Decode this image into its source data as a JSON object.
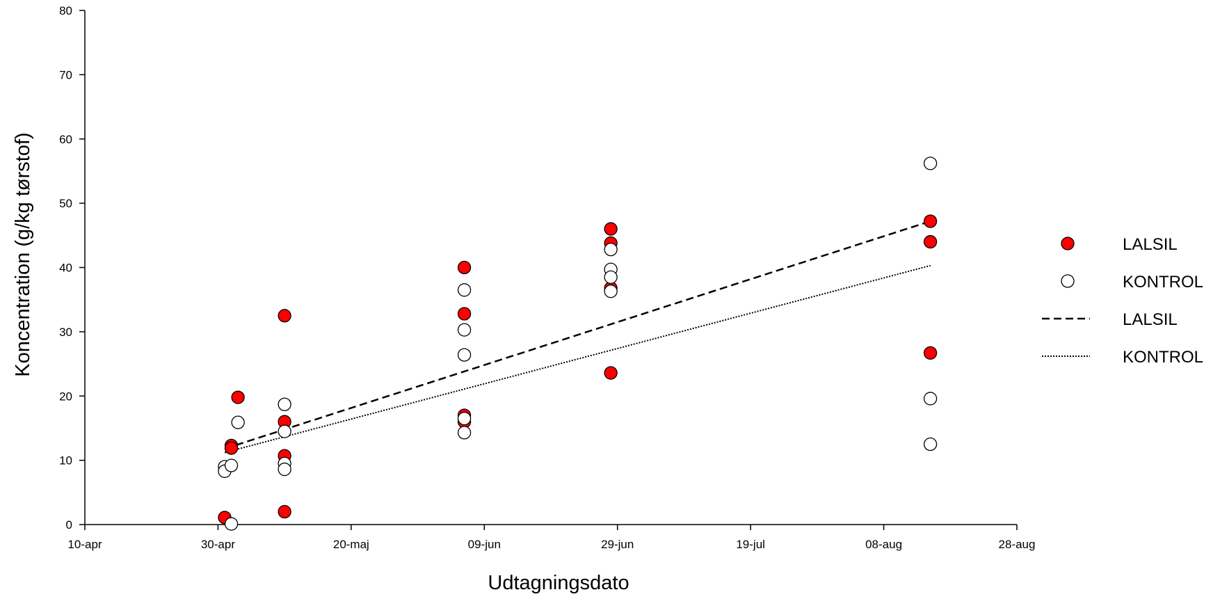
{
  "chart_data": {
    "type": "scatter",
    "title": "",
    "xlabel": "Udtagningsdato",
    "ylabel": "Koncentration (g/kg tørstof)",
    "xlim": [
      "2023-04-10",
      "2023-08-28"
    ],
    "ylim": [
      0,
      80
    ],
    "x_ticks": [
      "10-apr",
      "30-apr",
      "20-maj",
      "09-jun",
      "29-jun",
      "19-jul",
      "08-aug",
      "28-aug"
    ],
    "y_ticks": [
      0,
      10,
      20,
      30,
      40,
      50,
      60,
      70,
      80
    ],
    "grid": false,
    "legend_position": "right",
    "series": [
      {
        "name": "LALSIL",
        "kind": "points",
        "marker": "filled-circle",
        "color": "#ff0000",
        "points": [
          {
            "x": "2023-05-01",
            "y": 1.1
          },
          {
            "x": "2023-05-02",
            "y": 12.3
          },
          {
            "x": "2023-05-02",
            "y": 11.9
          },
          {
            "x": "2023-05-03",
            "y": 19.8
          },
          {
            "x": "2023-05-10",
            "y": 32.5
          },
          {
            "x": "2023-05-10",
            "y": 16.0
          },
          {
            "x": "2023-05-10",
            "y": 10.7
          },
          {
            "x": "2023-05-10",
            "y": 2.0
          },
          {
            "x": "2023-06-06",
            "y": 40.0
          },
          {
            "x": "2023-06-06",
            "y": 32.8
          },
          {
            "x": "2023-06-06",
            "y": 17.0
          },
          {
            "x": "2023-06-06",
            "y": 16.0
          },
          {
            "x": "2023-06-28",
            "y": 46.0
          },
          {
            "x": "2023-06-28",
            "y": 43.8
          },
          {
            "x": "2023-06-28",
            "y": 36.8
          },
          {
            "x": "2023-06-28",
            "y": 23.6
          },
          {
            "x": "2023-08-15",
            "y": 47.2
          },
          {
            "x": "2023-08-15",
            "y": 44.0
          },
          {
            "x": "2023-08-15",
            "y": 26.7
          }
        ]
      },
      {
        "name": "KONTROL",
        "kind": "points",
        "marker": "open-circle",
        "color": "#ffffff",
        "points": [
          {
            "x": "2023-05-01",
            "y": 9.0
          },
          {
            "x": "2023-05-01",
            "y": 8.3
          },
          {
            "x": "2023-05-02",
            "y": 9.2
          },
          {
            "x": "2023-05-02",
            "y": 0.1
          },
          {
            "x": "2023-05-03",
            "y": 15.9
          },
          {
            "x": "2023-05-10",
            "y": 18.7
          },
          {
            "x": "2023-05-10",
            "y": 14.5
          },
          {
            "x": "2023-05-10",
            "y": 9.5
          },
          {
            "x": "2023-05-10",
            "y": 8.6
          },
          {
            "x": "2023-06-06",
            "y": 36.5
          },
          {
            "x": "2023-06-06",
            "y": 30.3
          },
          {
            "x": "2023-06-06",
            "y": 26.4
          },
          {
            "x": "2023-06-06",
            "y": 16.5
          },
          {
            "x": "2023-06-06",
            "y": 14.3
          },
          {
            "x": "2023-06-28",
            "y": 42.8
          },
          {
            "x": "2023-06-28",
            "y": 39.7
          },
          {
            "x": "2023-06-28",
            "y": 38.5
          },
          {
            "x": "2023-06-28",
            "y": 36.3
          },
          {
            "x": "2023-08-15",
            "y": 56.2
          },
          {
            "x": "2023-08-15",
            "y": 19.6
          },
          {
            "x": "2023-08-15",
            "y": 12.5
          }
        ]
      },
      {
        "name": "LALSIL",
        "kind": "trendline",
        "style": "dashed",
        "color": "#000000",
        "points": [
          {
            "x": "2023-05-01",
            "y": 11.8
          },
          {
            "x": "2023-08-15",
            "y": 47.2
          }
        ]
      },
      {
        "name": "KONTROL",
        "kind": "trendline",
        "style": "dotted",
        "color": "#000000",
        "points": [
          {
            "x": "2023-05-01",
            "y": 11.2
          },
          {
            "x": "2023-08-15",
            "y": 40.3
          }
        ]
      }
    ]
  }
}
